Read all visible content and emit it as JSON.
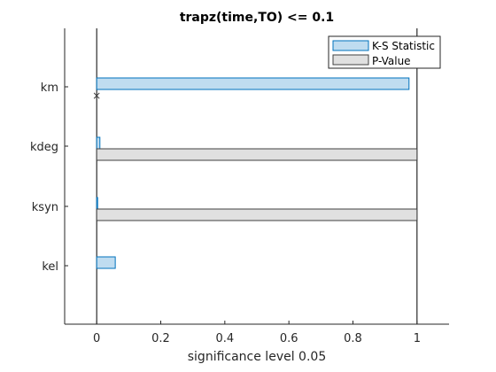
{
  "chart_data": {
    "type": "bar",
    "orientation": "horizontal",
    "title": "trapz(time,TO) <= 0.1",
    "xlabel": "significance level 0.05",
    "ylabel": "",
    "xlim": [
      -0.1,
      1.1
    ],
    "xticks": [
      0,
      0.2,
      0.4,
      0.6,
      0.8,
      1
    ],
    "xtick_labels": [
      "0",
      "0.2",
      "0.4",
      "0.6",
      "0.8",
      "1"
    ],
    "categories": [
      "km",
      "kdeg",
      "ksyn",
      "kel"
    ],
    "series": [
      {
        "name": "K-S Statistic",
        "values": [
          0.975,
          0.01,
          0.003,
          0.058
        ],
        "color": "#bfdcf0",
        "edge": "#0072bd"
      },
      {
        "name": "P-Value",
        "values": [
          0,
          1,
          1,
          0
        ],
        "color": "#e0e0e0",
        "edge": "#404040"
      }
    ],
    "markers": [
      {
        "category": "km",
        "x": 0,
        "symbol": "×"
      }
    ],
    "reference_lines": [
      0,
      1
    ],
    "legend_position": "top-right",
    "grid": false
  }
}
